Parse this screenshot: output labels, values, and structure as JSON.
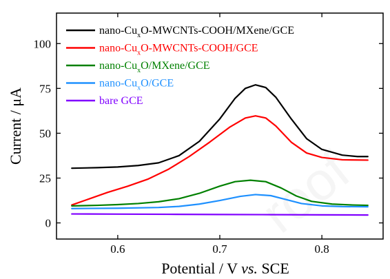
{
  "chart_data": {
    "type": "line",
    "xlabel": {
      "pre": "Potential / V ",
      "italic": "vs.",
      "post": " SCE"
    },
    "ylabel": "Current / μA",
    "xlim": [
      0.54,
      0.86
    ],
    "ylim": [
      -9,
      117
    ],
    "xticks": [
      0.6,
      0.7,
      0.8
    ],
    "yticks": [
      0,
      25,
      50,
      75,
      100
    ],
    "tick_labels_x": [
      "0.6",
      "0.7",
      "0.8"
    ],
    "tick_labels_y": [
      "0",
      "25",
      "50",
      "75",
      "100"
    ],
    "legend_placement": "top-left",
    "grid": false,
    "watermark": "roof",
    "series": [
      {
        "color": "#000000",
        "label_parts": [
          "nano-Cu",
          "x",
          "O-MWCNTs-COOH/MXene/GCE"
        ],
        "points": [
          [
            0.555,
            30.5
          ],
          [
            0.58,
            30.8
          ],
          [
            0.6,
            31.2
          ],
          [
            0.62,
            32.0
          ],
          [
            0.64,
            33.5
          ],
          [
            0.66,
            37.5
          ],
          [
            0.68,
            45.5
          ],
          [
            0.7,
            58.0
          ],
          [
            0.715,
            69.5
          ],
          [
            0.725,
            75.0
          ],
          [
            0.735,
            77.0
          ],
          [
            0.745,
            75.5
          ],
          [
            0.755,
            70.0
          ],
          [
            0.77,
            58.0
          ],
          [
            0.785,
            47.0
          ],
          [
            0.8,
            41.0
          ],
          [
            0.82,
            37.8
          ],
          [
            0.835,
            37.0
          ],
          [
            0.845,
            37.0
          ]
        ]
      },
      {
        "color": "#ff0000",
        "label_parts": [
          "nano-Cu",
          "x",
          "O-MWCNTs-COOH/GCE"
        ],
        "points": [
          [
            0.555,
            10.0
          ],
          [
            0.57,
            13.0
          ],
          [
            0.59,
            17.0
          ],
          [
            0.61,
            20.5
          ],
          [
            0.63,
            24.5
          ],
          [
            0.65,
            30.0
          ],
          [
            0.67,
            37.0
          ],
          [
            0.69,
            45.0
          ],
          [
            0.71,
            53.5
          ],
          [
            0.725,
            58.5
          ],
          [
            0.735,
            59.7
          ],
          [
            0.745,
            58.5
          ],
          [
            0.755,
            54.0
          ],
          [
            0.77,
            45.0
          ],
          [
            0.785,
            39.0
          ],
          [
            0.8,
            36.5
          ],
          [
            0.82,
            35.2
          ],
          [
            0.845,
            35.0
          ]
        ]
      },
      {
        "color": "#008000",
        "label_parts": [
          "nano-Cu",
          "x",
          "O/MXene/GCE"
        ],
        "points": [
          [
            0.555,
            9.5
          ],
          [
            0.58,
            9.8
          ],
          [
            0.6,
            10.2
          ],
          [
            0.62,
            10.8
          ],
          [
            0.64,
            11.8
          ],
          [
            0.66,
            13.5
          ],
          [
            0.68,
            16.5
          ],
          [
            0.7,
            20.5
          ],
          [
            0.715,
            23.0
          ],
          [
            0.73,
            23.8
          ],
          [
            0.745,
            23.0
          ],
          [
            0.76,
            19.5
          ],
          [
            0.775,
            15.0
          ],
          [
            0.79,
            12.0
          ],
          [
            0.81,
            10.5
          ],
          [
            0.83,
            10.0
          ],
          [
            0.845,
            9.8
          ]
        ]
      },
      {
        "color": "#1e90ff",
        "label_parts": [
          "nano-Cu",
          "x",
          "O/GCE"
        ],
        "points": [
          [
            0.555,
            8.0
          ],
          [
            0.6,
            8.2
          ],
          [
            0.64,
            8.6
          ],
          [
            0.66,
            9.2
          ],
          [
            0.68,
            10.5
          ],
          [
            0.7,
            12.5
          ],
          [
            0.72,
            14.8
          ],
          [
            0.735,
            15.8
          ],
          [
            0.75,
            15.2
          ],
          [
            0.765,
            13.0
          ],
          [
            0.78,
            10.8
          ],
          [
            0.8,
            9.5
          ],
          [
            0.82,
            9.1
          ],
          [
            0.845,
            9.0
          ]
        ]
      },
      {
        "color": "#8000ff",
        "label_parts": [
          "bare GCE"
        ],
        "points": [
          [
            0.555,
            5.0
          ],
          [
            0.6,
            4.9
          ],
          [
            0.65,
            4.8
          ],
          [
            0.7,
            4.7
          ],
          [
            0.75,
            4.6
          ],
          [
            0.8,
            4.5
          ],
          [
            0.845,
            4.4
          ]
        ]
      }
    ]
  }
}
